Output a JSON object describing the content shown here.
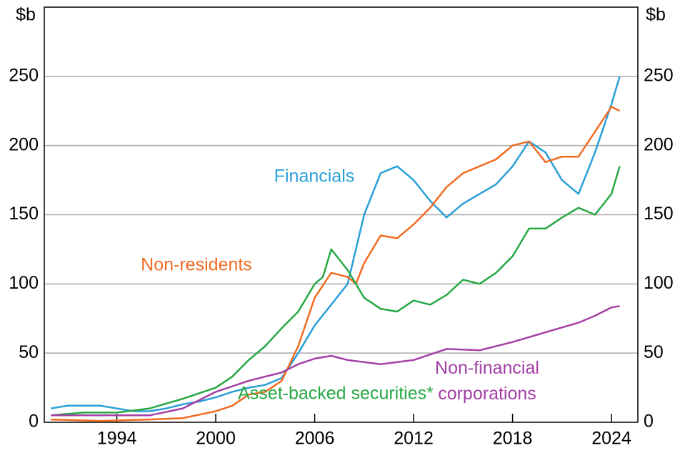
{
  "chart_data": {
    "type": "line",
    "ylabel": "$b",
    "y2label": "$b",
    "xlim": [
      1989.6,
      2025.6
    ],
    "xticks": [
      1994,
      2000,
      2006,
      2012,
      2018,
      2024
    ],
    "ylim": [
      0,
      300
    ],
    "yticks": [
      0,
      50,
      100,
      150,
      200,
      250
    ],
    "y2lim": [
      0,
      300
    ],
    "y2ticks": [
      0,
      50,
      100,
      150,
      200,
      250
    ],
    "grid": true,
    "series": [
      {
        "name": "Financials",
        "color": "#2a9fd8",
        "x": [
          1990,
          1991,
          1993,
          1995,
          1996,
          1997,
          1998,
          1999,
          2000,
          2001,
          2002,
          2003,
          2004,
          2005,
          2006,
          2007,
          2008,
          2009,
          2010,
          2011,
          2012,
          2013,
          2014,
          2015,
          2016,
          2017,
          2018,
          2019,
          2020,
          2021,
          2022,
          2023,
          2024,
          2024.5
        ],
        "values": [
          10,
          12,
          12,
          8,
          8,
          10,
          13,
          15,
          18,
          22,
          25,
          27,
          32,
          50,
          70,
          85,
          100,
          150,
          180,
          185,
          175,
          160,
          148,
          158,
          165,
          172,
          185,
          203,
          195,
          175,
          165,
          195,
          230,
          250
        ]
      },
      {
        "name": "Non-residents",
        "color": "#f26b21",
        "x": [
          1990,
          1993,
          1996,
          1998,
          2000,
          2001,
          2002,
          2003,
          2004,
          2005,
          2006,
          2007,
          2008,
          2008.5,
          2009,
          2010,
          2011,
          2012,
          2013,
          2014,
          2015,
          2016,
          2017,
          2018,
          2019,
          2020,
          2021,
          2022,
          2023,
          2024,
          2024.5
        ],
        "values": [
          2,
          1,
          2,
          3,
          8,
          12,
          20,
          22,
          30,
          55,
          90,
          108,
          105,
          100,
          115,
          135,
          133,
          143,
          155,
          170,
          180,
          185,
          190,
          200,
          203,
          188,
          192,
          192,
          210,
          228,
          225
        ]
      },
      {
        "name": "Asset-backed securities*",
        "color": "#27a844",
        "x": [
          1990,
          1992,
          1994,
          1996,
          1998,
          2000,
          2001,
          2002,
          2003,
          2004,
          2005,
          2006,
          2006.5,
          2007,
          2008,
          2009,
          2010,
          2011,
          2012,
          2013,
          2014,
          2015,
          2016,
          2017,
          2018,
          2019,
          2020,
          2021,
          2022,
          2023,
          2024,
          2024.5
        ],
        "values": [
          5,
          7,
          7,
          10,
          17,
          25,
          33,
          45,
          55,
          68,
          80,
          100,
          105,
          125,
          110,
          90,
          82,
          80,
          88,
          85,
          92,
          103,
          100,
          108,
          120,
          140,
          140,
          148,
          155,
          150,
          165,
          185
        ]
      },
      {
        "name": "Non-financial corporations",
        "color": "#a43fa6",
        "x": [
          1990,
          1992,
          1994,
          1996,
          1998,
          2000,
          2002,
          2003,
          2004,
          2005,
          2006,
          2007,
          2008,
          2010,
          2012,
          2014,
          2016,
          2018,
          2020,
          2022,
          2023,
          2024,
          2024.5
        ],
        "values": [
          5,
          5,
          5,
          5,
          10,
          22,
          30,
          33,
          36,
          42,
          46,
          48,
          45,
          42,
          45,
          53,
          52,
          58,
          65,
          72,
          77,
          83,
          84
        ]
      }
    ]
  }
}
